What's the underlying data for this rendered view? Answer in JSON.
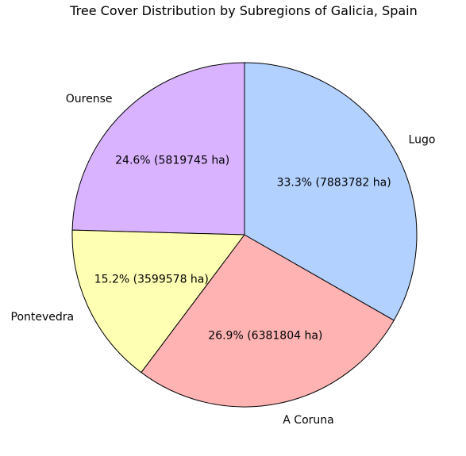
{
  "chart_data": {
    "type": "pie",
    "title": "Tree Cover Distribution by Subregions of Galicia, Spain",
    "unit": "ha",
    "start_angle_deg": 90,
    "direction": "counterclockwise",
    "slices": [
      {
        "label": "Ourense",
        "value": 5819745,
        "percent_label": "24.6% (5819745 ha)",
        "color": "#d9b3ff"
      },
      {
        "label": "Pontevedra",
        "value": 3599578,
        "percent_label": "15.2% (3599578 ha)",
        "color": "#ffffb3"
      },
      {
        "label": "A Coruna",
        "value": 6381804,
        "percent_label": "26.9% (6381804 ha)",
        "color": "#ffb3b3"
      },
      {
        "label": "Lugo",
        "value": 7883782,
        "percent_label": "33.3% (7883782 ha)",
        "color": "#b3d1ff"
      }
    ]
  }
}
